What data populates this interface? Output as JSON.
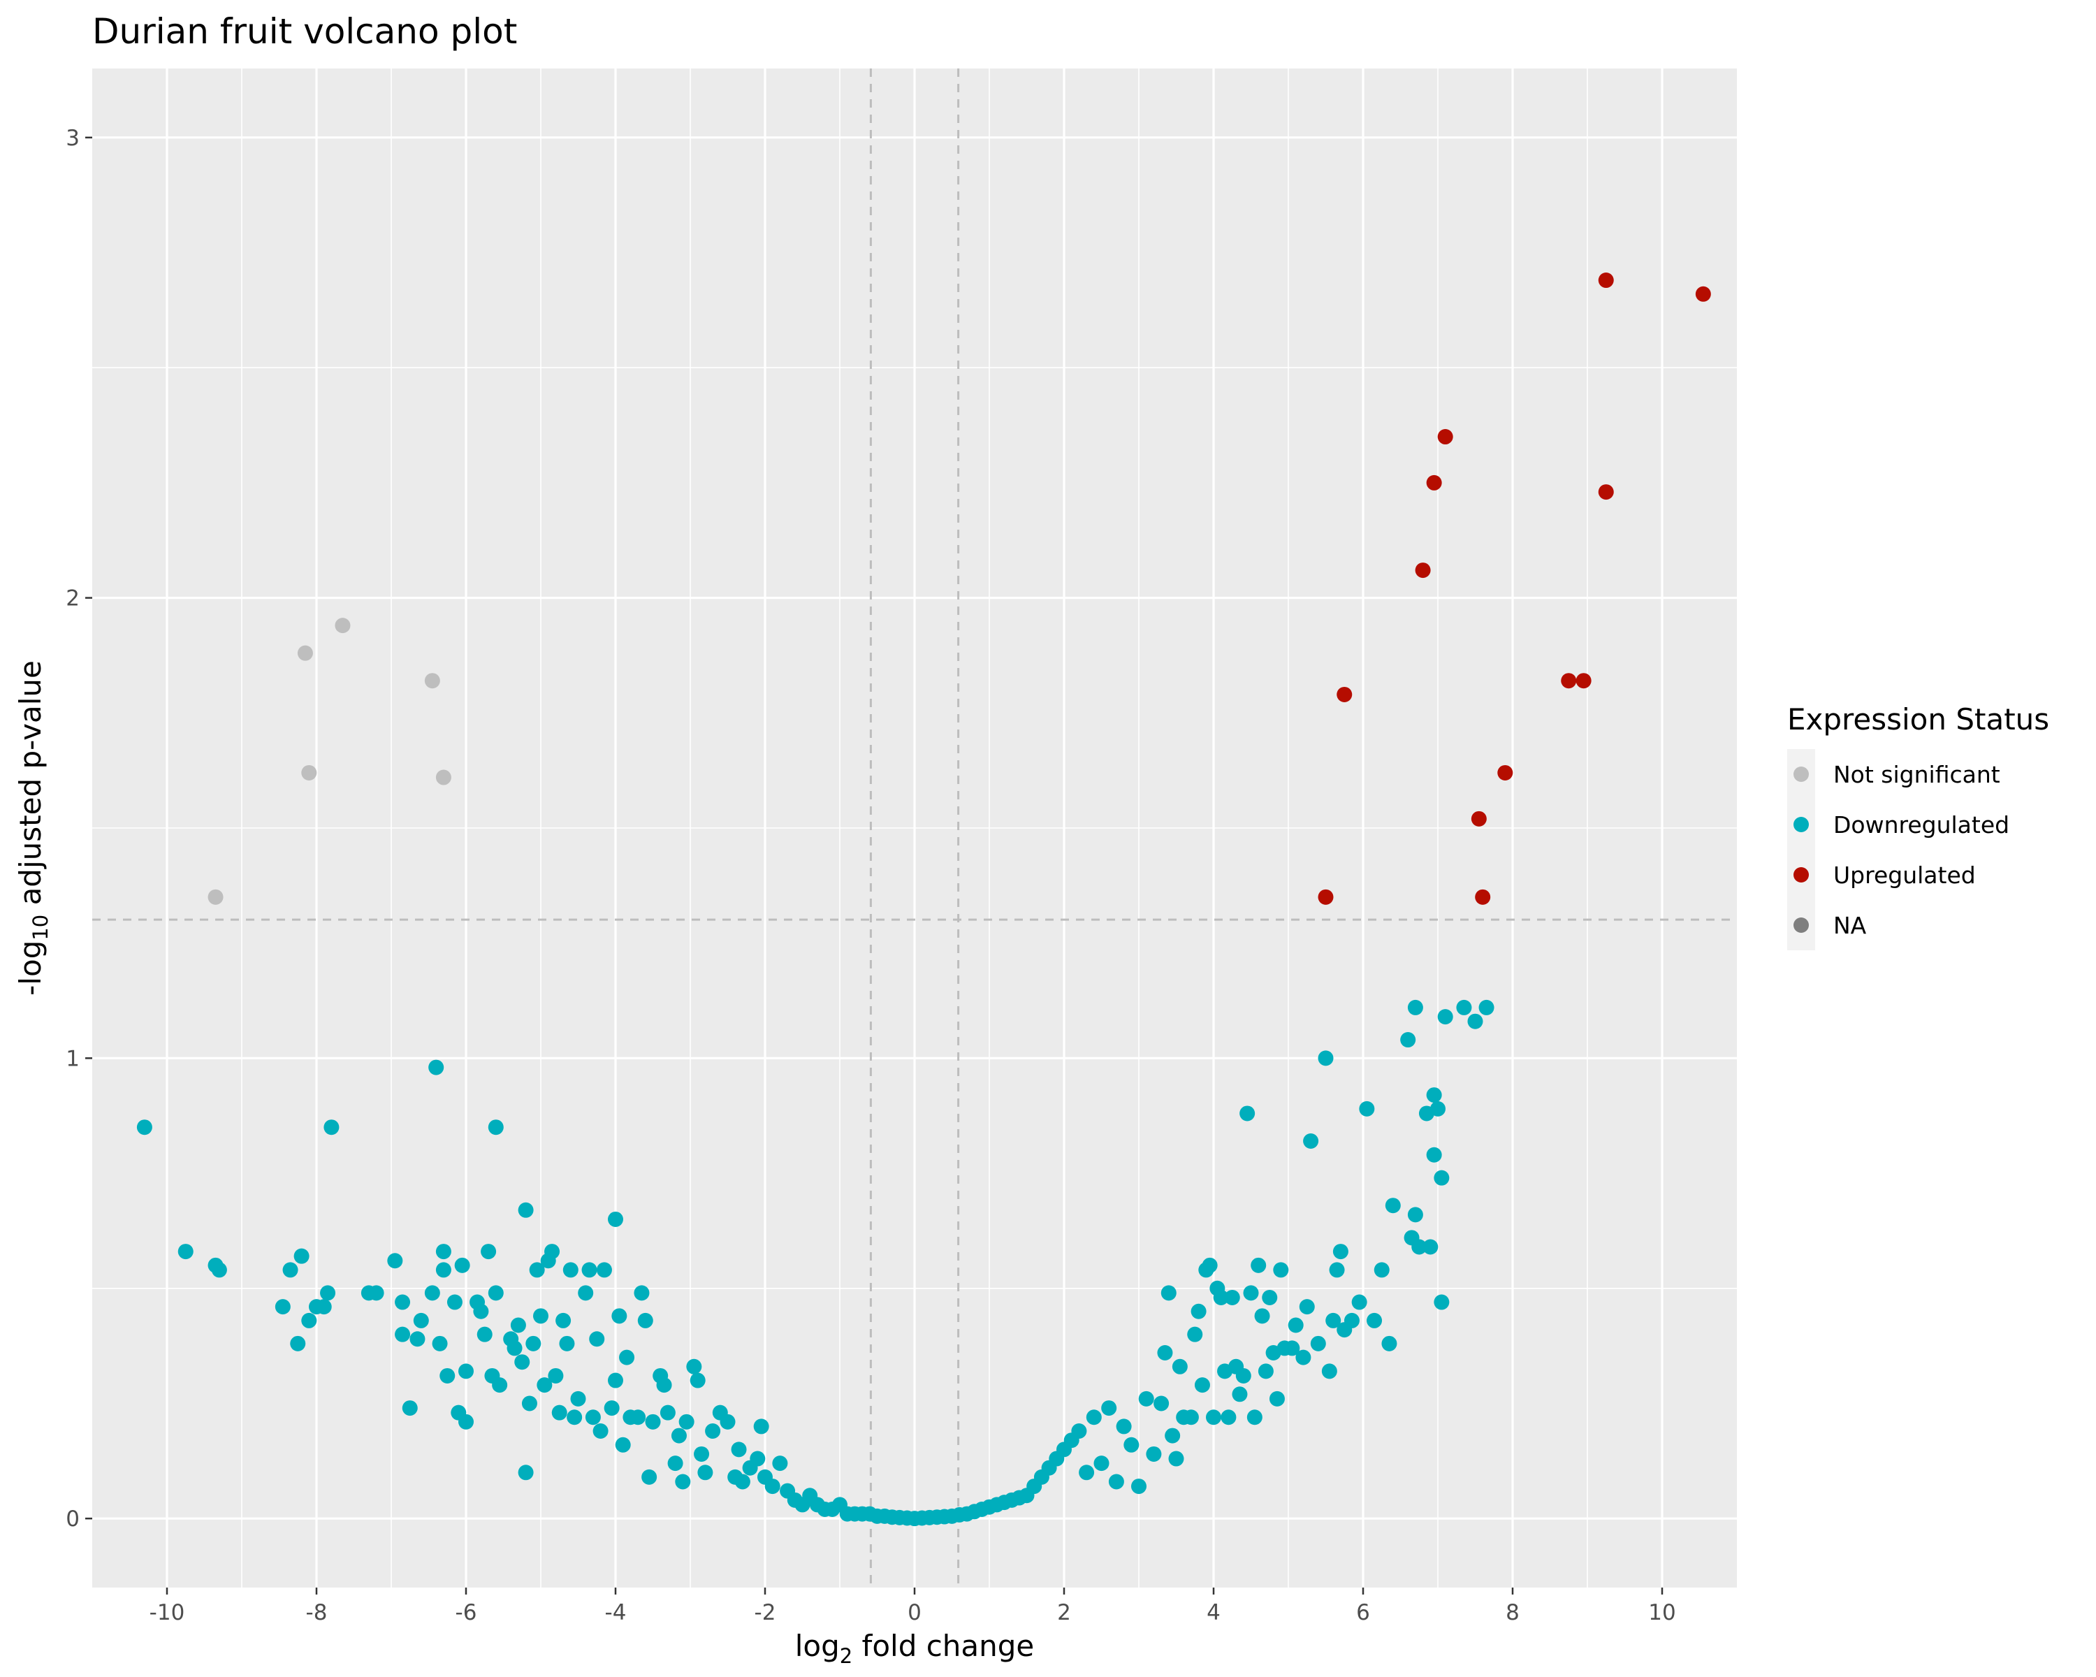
{
  "chart_data": {
    "type": "scatter",
    "title": "Durian fruit volcano plot",
    "xlabel": {
      "prefix": "log",
      "sub": "2",
      "suffix": " fold change"
    },
    "ylabel": {
      "prefix": "-log",
      "sub": "10",
      "suffix": " adjusted p-value"
    },
    "xlim": [
      -11,
      11
    ],
    "ylim": [
      -0.15,
      3.15
    ],
    "x_ticks": [
      -10,
      -8,
      -6,
      -4,
      -2,
      0,
      2,
      4,
      6,
      8,
      10
    ],
    "x_tick_labels": [
      "-10",
      "-8",
      "-6",
      "-4",
      "-2",
      "0",
      "2",
      "4",
      "6",
      "8",
      "10"
    ],
    "y_ticks": [
      0,
      1,
      2,
      3
    ],
    "y_tick_labels": [
      "0",
      "1",
      "2",
      "3"
    ],
    "grid": true,
    "background": "#ebebeb",
    "reference_lines": {
      "vertical": [
        -0.585,
        0.585
      ],
      "horizontal": [
        1.301
      ],
      "style": "dashed",
      "color": "#bdbdbd"
    },
    "legend": {
      "title": "Expression Status",
      "placement": "right",
      "entries": [
        {
          "label": "Not significant",
          "color": "#bebebe"
        },
        {
          "label": "Downregulated",
          "color": "#00aebc"
        },
        {
          "label": "Upregulated",
          "color": "#b50d00"
        },
        {
          "label": "NA",
          "color": "#7f7f7f"
        }
      ]
    },
    "series": [
      {
        "name": "Not significant",
        "color": "#bebebe",
        "points": [
          [
            -9.35,
            1.35
          ],
          [
            -8.15,
            1.88
          ],
          [
            -8.1,
            1.62
          ],
          [
            -7.65,
            1.94
          ],
          [
            -6.45,
            1.82
          ],
          [
            -6.3,
            1.61
          ]
        ]
      },
      {
        "name": "Upregulated",
        "color": "#b50d00",
        "points": [
          [
            5.5,
            1.35
          ],
          [
            5.75,
            1.79
          ],
          [
            6.8,
            2.06
          ],
          [
            6.95,
            2.25
          ],
          [
            7.1,
            2.35
          ],
          [
            7.55,
            1.52
          ],
          [
            7.6,
            1.35
          ],
          [
            7.9,
            1.62
          ],
          [
            8.75,
            1.82
          ],
          [
            8.95,
            1.82
          ],
          [
            9.25,
            2.23
          ],
          [
            9.25,
            2.69
          ],
          [
            10.55,
            2.66
          ]
        ]
      },
      {
        "name": "Downregulated",
        "color": "#00aebc",
        "points": [
          [
            -10.3,
            0.85
          ],
          [
            -9.75,
            0.58
          ],
          [
            -9.35,
            0.55
          ],
          [
            -9.3,
            0.54
          ],
          [
            -8.45,
            0.46
          ],
          [
            -8.35,
            0.54
          ],
          [
            -8.25,
            0.38
          ],
          [
            -8.2,
            0.57
          ],
          [
            -8.1,
            0.43
          ],
          [
            -8.0,
            0.46
          ],
          [
            -7.9,
            0.46
          ],
          [
            -7.85,
            0.49
          ],
          [
            -7.8,
            0.85
          ],
          [
            -7.3,
            0.49
          ],
          [
            -7.2,
            0.49
          ],
          [
            -6.95,
            0.56
          ],
          [
            -6.85,
            0.47
          ],
          [
            -6.85,
            0.4
          ],
          [
            -6.75,
            0.24
          ],
          [
            -6.65,
            0.39
          ],
          [
            -6.6,
            0.43
          ],
          [
            -6.45,
            0.49
          ],
          [
            -6.4,
            0.98
          ],
          [
            -6.35,
            0.38
          ],
          [
            -6.3,
            0.54
          ],
          [
            -6.3,
            0.58
          ],
          [
            -6.25,
            0.31
          ],
          [
            -6.15,
            0.47
          ],
          [
            -6.1,
            0.23
          ],
          [
            -6.05,
            0.55
          ],
          [
            -6.0,
            0.32
          ],
          [
            -6.0,
            0.21
          ],
          [
            -5.85,
            0.47
          ],
          [
            -5.8,
            0.45
          ],
          [
            -5.75,
            0.4
          ],
          [
            -5.7,
            0.58
          ],
          [
            -5.65,
            0.31
          ],
          [
            -5.6,
            0.85
          ],
          [
            -5.6,
            0.49
          ],
          [
            -5.55,
            0.29
          ],
          [
            -5.4,
            0.39
          ],
          [
            -5.35,
            0.37
          ],
          [
            -5.3,
            0.42
          ],
          [
            -5.25,
            0.34
          ],
          [
            -5.2,
            0.67
          ],
          [
            -5.2,
            0.1
          ],
          [
            -5.15,
            0.25
          ],
          [
            -5.1,
            0.38
          ],
          [
            -5.05,
            0.54
          ],
          [
            -5.0,
            0.44
          ],
          [
            -4.95,
            0.29
          ],
          [
            -4.9,
            0.56
          ],
          [
            -4.85,
            0.58
          ],
          [
            -4.8,
            0.31
          ],
          [
            -4.75,
            0.23
          ],
          [
            -4.7,
            0.43
          ],
          [
            -4.65,
            0.38
          ],
          [
            -4.6,
            0.54
          ],
          [
            -4.55,
            0.22
          ],
          [
            -4.5,
            0.26
          ],
          [
            -4.4,
            0.49
          ],
          [
            -4.35,
            0.54
          ],
          [
            -4.3,
            0.22
          ],
          [
            -4.25,
            0.39
          ],
          [
            -4.2,
            0.19
          ],
          [
            -4.15,
            0.54
          ],
          [
            -4.05,
            0.24
          ],
          [
            -4.0,
            0.65
          ],
          [
            -4.0,
            0.3
          ],
          [
            -3.95,
            0.44
          ],
          [
            -3.9,
            0.16
          ],
          [
            -3.85,
            0.35
          ],
          [
            -3.8,
            0.22
          ],
          [
            -3.7,
            0.22
          ],
          [
            -3.65,
            0.49
          ],
          [
            -3.6,
            0.43
          ],
          [
            -3.55,
            0.09
          ],
          [
            -3.5,
            0.21
          ],
          [
            -3.4,
            0.31
          ],
          [
            -3.35,
            0.29
          ],
          [
            -3.3,
            0.23
          ],
          [
            -3.2,
            0.12
          ],
          [
            -3.15,
            0.18
          ],
          [
            -3.1,
            0.08
          ],
          [
            -3.05,
            0.21
          ],
          [
            -2.95,
            0.33
          ],
          [
            -2.9,
            0.3
          ],
          [
            -2.85,
            0.14
          ],
          [
            -2.8,
            0.1
          ],
          [
            -2.7,
            0.19
          ],
          [
            -2.6,
            0.23
          ],
          [
            -2.5,
            0.21
          ],
          [
            -2.4,
            0.09
          ],
          [
            -2.35,
            0.15
          ],
          [
            -2.3,
            0.08
          ],
          [
            -2.2,
            0.11
          ],
          [
            -2.1,
            0.13
          ],
          [
            -2.05,
            0.2
          ],
          [
            -2.0,
            0.09
          ],
          [
            -1.9,
            0.07
          ],
          [
            -1.8,
            0.12
          ],
          [
            -1.7,
            0.06
          ],
          [
            -1.6,
            0.04
          ],
          [
            -1.5,
            0.03
          ],
          [
            -1.4,
            0.05
          ],
          [
            -1.3,
            0.03
          ],
          [
            -1.2,
            0.02
          ],
          [
            -1.1,
            0.02
          ],
          [
            -1.0,
            0.03
          ],
          [
            -0.9,
            0.01
          ],
          [
            -0.8,
            0.01
          ],
          [
            -0.7,
            0.01
          ],
          [
            -0.6,
            0.01
          ],
          [
            -0.5,
            0.005
          ],
          [
            -0.4,
            0.005
          ],
          [
            -0.3,
            0.003
          ],
          [
            -0.2,
            0.002
          ],
          [
            -0.1,
            0.001
          ],
          [
            0.0,
            0.0
          ],
          [
            0.1,
            0.001
          ],
          [
            0.2,
            0.002
          ],
          [
            0.3,
            0.003
          ],
          [
            0.4,
            0.004
          ],
          [
            0.5,
            0.005
          ],
          [
            0.6,
            0.008
          ],
          [
            0.7,
            0.01
          ],
          [
            0.8,
            0.015
          ],
          [
            0.9,
            0.02
          ],
          [
            1.0,
            0.025
          ],
          [
            1.1,
            0.03
          ],
          [
            1.2,
            0.035
          ],
          [
            1.3,
            0.04
          ],
          [
            1.4,
            0.045
          ],
          [
            1.5,
            0.05
          ],
          [
            1.6,
            0.07
          ],
          [
            1.7,
            0.09
          ],
          [
            1.8,
            0.11
          ],
          [
            1.9,
            0.13
          ],
          [
            2.0,
            0.15
          ],
          [
            2.1,
            0.17
          ],
          [
            2.2,
            0.19
          ],
          [
            2.3,
            0.1
          ],
          [
            2.4,
            0.22
          ],
          [
            2.5,
            0.12
          ],
          [
            2.6,
            0.24
          ],
          [
            2.7,
            0.08
          ],
          [
            2.8,
            0.2
          ],
          [
            2.9,
            0.16
          ],
          [
            3.0,
            0.07
          ],
          [
            3.1,
            0.26
          ],
          [
            3.2,
            0.14
          ],
          [
            3.3,
            0.25
          ],
          [
            3.35,
            0.36
          ],
          [
            3.4,
            0.49
          ],
          [
            3.45,
            0.18
          ],
          [
            3.5,
            0.13
          ],
          [
            3.55,
            0.33
          ],
          [
            3.6,
            0.22
          ],
          [
            3.7,
            0.22
          ],
          [
            3.75,
            0.4
          ],
          [
            3.8,
            0.45
          ],
          [
            3.85,
            0.29
          ],
          [
            3.9,
            0.54
          ],
          [
            3.95,
            0.55
          ],
          [
            4.0,
            0.22
          ],
          [
            4.05,
            0.5
          ],
          [
            4.1,
            0.48
          ],
          [
            4.15,
            0.32
          ],
          [
            4.2,
            0.22
          ],
          [
            4.25,
            0.48
          ],
          [
            4.3,
            0.33
          ],
          [
            4.35,
            0.27
          ],
          [
            4.4,
            0.31
          ],
          [
            4.45,
            0.88
          ],
          [
            4.5,
            0.49
          ],
          [
            4.55,
            0.22
          ],
          [
            4.6,
            0.55
          ],
          [
            4.65,
            0.44
          ],
          [
            4.7,
            0.32
          ],
          [
            4.75,
            0.48
          ],
          [
            4.8,
            0.36
          ],
          [
            4.85,
            0.26
          ],
          [
            4.9,
            0.54
          ],
          [
            4.95,
            0.37
          ],
          [
            5.05,
            0.37
          ],
          [
            5.1,
            0.42
          ],
          [
            5.2,
            0.35
          ],
          [
            5.25,
            0.46
          ],
          [
            5.3,
            0.82
          ],
          [
            5.4,
            0.38
          ],
          [
            5.5,
            1.0
          ],
          [
            5.55,
            0.32
          ],
          [
            5.6,
            0.43
          ],
          [
            5.65,
            0.54
          ],
          [
            5.7,
            0.58
          ],
          [
            5.75,
            0.41
          ],
          [
            5.85,
            0.43
          ],
          [
            5.95,
            0.47
          ],
          [
            6.05,
            0.89
          ],
          [
            6.15,
            0.43
          ],
          [
            6.25,
            0.54
          ],
          [
            6.35,
            0.38
          ],
          [
            6.4,
            0.68
          ],
          [
            6.6,
            1.04
          ],
          [
            6.65,
            0.61
          ],
          [
            6.7,
            1.11
          ],
          [
            6.7,
            0.66
          ],
          [
            6.75,
            0.59
          ],
          [
            6.85,
            0.88
          ],
          [
            6.9,
            0.59
          ],
          [
            6.95,
            0.92
          ],
          [
            6.95,
            0.79
          ],
          [
            7.0,
            0.89
          ],
          [
            7.05,
            0.74
          ],
          [
            7.05,
            0.47
          ],
          [
            7.1,
            1.09
          ],
          [
            7.35,
            1.11
          ],
          [
            7.5,
            1.08
          ],
          [
            7.65,
            1.11
          ]
        ]
      }
    ]
  }
}
